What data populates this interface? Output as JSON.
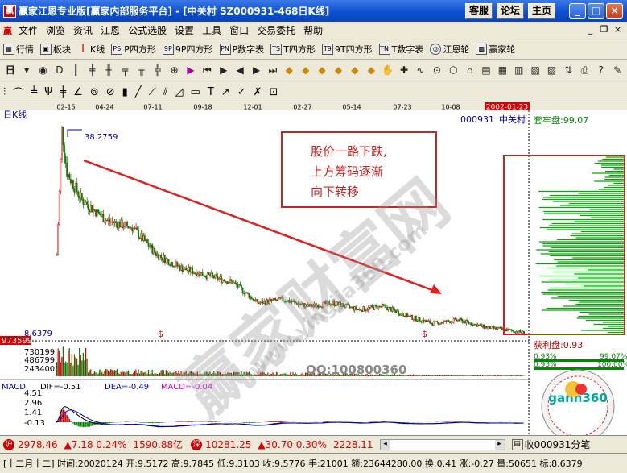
{
  "window": {
    "title": "赢家江恩专业版[赢家内部服务平台] - [中关村   SZ000931-468日K线]",
    "buttons": [
      "客服",
      "论坛",
      "主页"
    ]
  },
  "menu": [
    "文件",
    "浏览",
    "资讯",
    "江恩",
    "公式选股",
    "设置",
    "工具",
    "窗口",
    "交易委托",
    "帮助"
  ],
  "toolbar1": [
    "行情",
    "板块",
    "K线",
    "P四方形",
    "9P四方形",
    "P数字表",
    "T四方形",
    "9T四方形",
    "T数字表",
    "江恩轮",
    "赢家轮"
  ],
  "toolbar1_icons": [
    "PS",
    "9P",
    "PN",
    "TS",
    "T9",
    "TN"
  ],
  "toolbar2_labels": [
    "日",
    "D"
  ],
  "chart": {
    "period_label": "日K线",
    "date_ticks": [
      "02-15",
      "04-24",
      "07-11",
      "09-18",
      "12-01",
      "02-27",
      "05-14",
      "07-23",
      "10-08"
    ],
    "highlight_date": "2002-01-23",
    "stock_code": "000931",
    "stock_name": "中关村",
    "trapped_label": "套牢盘:99.07",
    "profit_label": "获利盘:0.93",
    "profit_pct_left": "0.93%",
    "profit_pct_right": "99.07%",
    "right_hundred": "100.00%",
    "high_label": "38.2759",
    "low_label": "8.6379",
    "annotation": [
      "股价一路下跌,",
      "上方筹码逐渐",
      "向下转移"
    ],
    "volume_ticks": [
      "973599",
      "730199",
      "486799",
      "243400"
    ],
    "macd": {
      "name": "MACD",
      "dif": "DIF=-0.51",
      "dea": "DEA=-0.49",
      "macd": "MACD=-0.04",
      "ticks": [
        "4.51",
        "2.96",
        "1.41",
        "-0.13"
      ]
    },
    "watermark": "QQ:100800360",
    "logo_text": "gann360"
  },
  "chart_data": {
    "type": "candlestick",
    "title": "中关村 SZ000931 日K线",
    "price_high": 38.2759,
    "price_low": 8.6379,
    "trend": [
      [
        0,
        20
      ],
      [
        4,
        38.28
      ],
      [
        8,
        32
      ],
      [
        20,
        28
      ],
      [
        40,
        25
      ],
      [
        60,
        24
      ],
      [
        80,
        20
      ],
      [
        100,
        18
      ],
      [
        120,
        17
      ],
      [
        140,
        16
      ],
      [
        160,
        13
      ],
      [
        180,
        13.5
      ],
      [
        200,
        12.5
      ],
      [
        220,
        13
      ],
      [
        240,
        12
      ],
      [
        260,
        12.5
      ],
      [
        280,
        11
      ],
      [
        300,
        10
      ],
      [
        320,
        10.5
      ],
      [
        340,
        9.5
      ],
      [
        360,
        9
      ],
      [
        372,
        8.64
      ]
    ]
  },
  "status1": {
    "sh_index": "2978.46",
    "sh_change": "▲7.18 0.24%",
    "sh_amount": "1590.88亿",
    "sz_index": "10281.25",
    "sz_change": "▲30.70 0.30%",
    "sz_amount": "2228.11",
    "right_label": "收000931分笔"
  },
  "status2": "[十二月十二] 时间:20020124  开:9.5172  高:9.7845  低:9.3103  收:9.5776  手:21001  额:23644280.00  换:0.41  涨:-0.27  量:50651  标:8.6379",
  "colors": {
    "up": "#d00000",
    "down": "#008000",
    "line_dif": "#000000",
    "line_dea": "#0000cc",
    "annotation_box": "#cc2222",
    "arrow": "#dd2222"
  }
}
